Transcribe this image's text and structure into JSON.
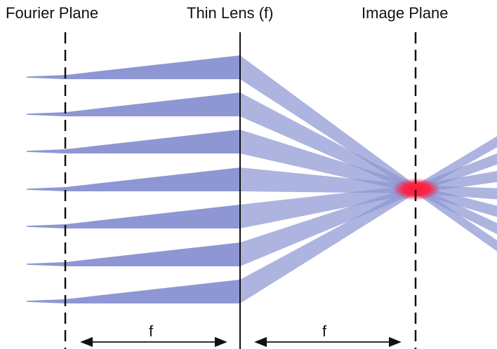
{
  "labels": {
    "fourier_plane": "Fourier Plane",
    "thin_lens": "Thin Lens (f)",
    "image_plane": "Image Plane",
    "focal_left": "f",
    "focal_right": "f"
  },
  "beams": {
    "count": 7,
    "color": "#8e97d3",
    "overlap_color": "#3447b3",
    "focus_color": "#ff1a3a"
  }
}
